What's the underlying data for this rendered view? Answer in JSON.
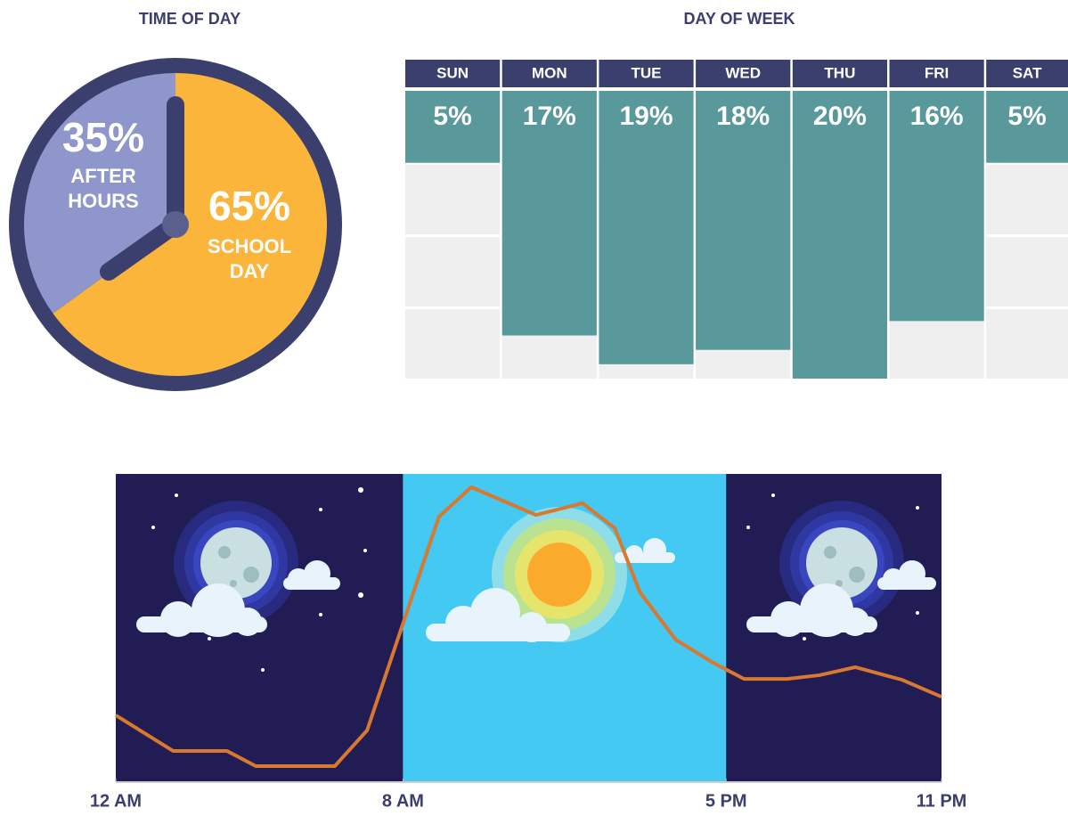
{
  "chart_data": [
    {
      "type": "pie",
      "title": "TIME OF DAY",
      "categories": [
        "SCHOOL DAY",
        "AFTER HOURS"
      ],
      "values": [
        65,
        35
      ],
      "value_labels": [
        "65%",
        "35%"
      ],
      "colors": [
        "#fbb53b",
        "#8e96cb"
      ]
    },
    {
      "type": "bar",
      "title": "DAY OF WEEK",
      "categories": [
        "SUN",
        "MON",
        "TUE",
        "WED",
        "THU",
        "FRI",
        "SAT"
      ],
      "values": [
        5,
        17,
        19,
        18,
        20,
        16,
        5
      ],
      "value_labels": [
        "5%",
        "17%",
        "19%",
        "18%",
        "20%",
        "16%",
        "5%"
      ],
      "color": "#5a999b",
      "ylim": [
        0,
        20
      ]
    },
    {
      "type": "line",
      "x": [
        0,
        1.6,
        3.1,
        3.9,
        6.1,
        7,
        9,
        9.9,
        11.7,
        13,
        13.9,
        14.6,
        15.6,
        16.6,
        17.5,
        18.7,
        19.6,
        20.6,
        21.9,
        23
      ],
      "values": [
        21.7,
        10.1,
        10.1,
        5.2,
        5.2,
        16.8,
        86.1,
        95.7,
        86.7,
        90.5,
        82.4,
        61.6,
        46.2,
        39,
        33.5,
        33.5,
        34.7,
        37.3,
        33.2,
        27.7
      ],
      "color": "#d9782f",
      "xlim": [
        0,
        23
      ],
      "ylim": [
        0,
        100
      ],
      "xticks": [
        {
          "value": 0,
          "label": "12 AM"
        },
        {
          "value": 8,
          "label": "8 AM"
        },
        {
          "value": 17,
          "label": "5 PM"
        },
        {
          "value": 23,
          "label": "11 PM"
        }
      ]
    }
  ]
}
